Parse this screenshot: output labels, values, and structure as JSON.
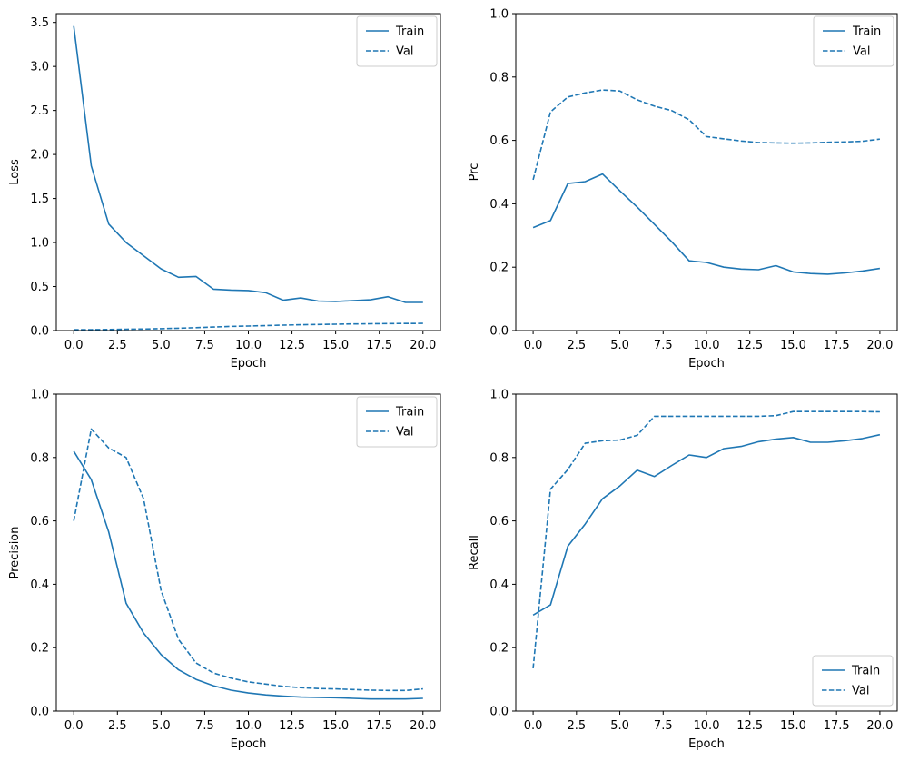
{
  "figure": {
    "background": "#ffffff",
    "line_color": "#1f77b4",
    "axis_color": "#000000",
    "legend_border_color": "#cccccc",
    "legend_labels": [
      "Train",
      "Val"
    ]
  },
  "chart_data": [
    {
      "type": "line",
      "panel": "top-left",
      "title": "",
      "xlabel": "Epoch",
      "ylabel": "Loss",
      "xlim": [
        -1,
        21
      ],
      "ylim": [
        0,
        3.6
      ],
      "xticks": [
        0,
        2.5,
        5,
        7.5,
        10,
        12.5,
        15,
        17.5,
        20
      ],
      "yticks": [
        0,
        0.5,
        1,
        1.5,
        2,
        2.5,
        3,
        3.5
      ],
      "grid": false,
      "legend_loc": "upper-right",
      "x": [
        0,
        1,
        2,
        3,
        4,
        5,
        6,
        7,
        8,
        9,
        10,
        11,
        12,
        13,
        14,
        15,
        16,
        17,
        18,
        19,
        20
      ],
      "series": [
        {
          "name": "Train",
          "style": "solid",
          "values": [
            3.46,
            1.87,
            1.21,
            1.0,
            0.85,
            0.7,
            0.605,
            0.615,
            0.47,
            0.46,
            0.455,
            0.43,
            0.345,
            0.37,
            0.335,
            0.33,
            0.34,
            0.35,
            0.385,
            0.32,
            0.32
          ]
        },
        {
          "name": "Val",
          "style": "dashed",
          "values": [
            0.01,
            0.01,
            0.012,
            0.015,
            0.018,
            0.022,
            0.027,
            0.033,
            0.04,
            0.047,
            0.052,
            0.057,
            0.062,
            0.066,
            0.069,
            0.072,
            0.075,
            0.077,
            0.079,
            0.08,
            0.082
          ]
        }
      ]
    },
    {
      "type": "line",
      "panel": "top-right",
      "title": "",
      "xlabel": "Epoch",
      "ylabel": "Prc",
      "xlim": [
        -1,
        21
      ],
      "ylim": [
        0,
        1
      ],
      "xticks": [
        0,
        2.5,
        5,
        7.5,
        10,
        12.5,
        15,
        17.5,
        20
      ],
      "yticks": [
        0,
        0.2,
        0.4,
        0.6,
        0.8,
        1.0
      ],
      "grid": false,
      "legend_loc": "upper-right",
      "x": [
        0,
        1,
        2,
        3,
        4,
        5,
        6,
        7,
        8,
        9,
        10,
        11,
        12,
        13,
        14,
        15,
        16,
        17,
        18,
        19,
        20
      ],
      "series": [
        {
          "name": "Train",
          "style": "solid",
          "values": [
            0.325,
            0.347,
            0.464,
            0.47,
            0.494,
            0.441,
            0.39,
            0.335,
            0.28,
            0.22,
            0.215,
            0.2,
            0.194,
            0.192,
            0.205,
            0.185,
            0.18,
            0.178,
            0.182,
            0.188,
            0.196
          ]
        },
        {
          "name": "Val",
          "style": "dashed",
          "values": [
            0.476,
            0.69,
            0.737,
            0.75,
            0.759,
            0.756,
            0.728,
            0.708,
            0.694,
            0.665,
            0.612,
            0.605,
            0.598,
            0.593,
            0.592,
            0.591,
            0.592,
            0.594,
            0.595,
            0.597,
            0.604
          ]
        }
      ]
    },
    {
      "type": "line",
      "panel": "bottom-left",
      "title": "",
      "xlabel": "Epoch",
      "ylabel": "Precision",
      "xlim": [
        -1,
        21
      ],
      "ylim": [
        0,
        1
      ],
      "xticks": [
        0,
        2.5,
        5,
        7.5,
        10,
        12.5,
        15,
        17.5,
        20
      ],
      "yticks": [
        0,
        0.2,
        0.4,
        0.6,
        0.8,
        1.0
      ],
      "grid": false,
      "legend_loc": "upper-right",
      "x": [
        0,
        1,
        2,
        3,
        4,
        5,
        6,
        7,
        8,
        9,
        10,
        11,
        12,
        13,
        14,
        15,
        16,
        17,
        18,
        19,
        20
      ],
      "series": [
        {
          "name": "Train",
          "style": "solid",
          "values": [
            0.82,
            0.73,
            0.565,
            0.34,
            0.246,
            0.178,
            0.13,
            0.1,
            0.08,
            0.066,
            0.057,
            0.051,
            0.047,
            0.044,
            0.043,
            0.042,
            0.04,
            0.038,
            0.038,
            0.038,
            0.04
          ]
        },
        {
          "name": "Val",
          "style": "dashed",
          "values": [
            0.6,
            0.89,
            0.83,
            0.8,
            0.67,
            0.38,
            0.226,
            0.152,
            0.12,
            0.104,
            0.092,
            0.085,
            0.078,
            0.074,
            0.071,
            0.07,
            0.068,
            0.066,
            0.065,
            0.065,
            0.07
          ]
        }
      ]
    },
    {
      "type": "line",
      "panel": "bottom-right",
      "title": "",
      "xlabel": "Epoch",
      "ylabel": "Recall",
      "xlim": [
        -1,
        21
      ],
      "ylim": [
        0,
        1
      ],
      "xticks": [
        0,
        2.5,
        5,
        7.5,
        10,
        12.5,
        15,
        17.5,
        20
      ],
      "yticks": [
        0,
        0.2,
        0.4,
        0.6,
        0.8,
        1.0
      ],
      "grid": false,
      "legend_loc": "lower-right",
      "x": [
        0,
        1,
        2,
        3,
        4,
        5,
        6,
        7,
        8,
        9,
        10,
        11,
        12,
        13,
        14,
        15,
        16,
        17,
        18,
        19,
        20
      ],
      "series": [
        {
          "name": "Train",
          "style": "solid",
          "values": [
            0.303,
            0.335,
            0.52,
            0.59,
            0.67,
            0.71,
            0.76,
            0.74,
            0.775,
            0.808,
            0.8,
            0.828,
            0.835,
            0.85,
            0.858,
            0.863,
            0.848,
            0.848,
            0.853,
            0.86,
            0.872
          ]
        },
        {
          "name": "Val",
          "style": "dashed",
          "values": [
            0.135,
            0.7,
            0.762,
            0.845,
            0.853,
            0.855,
            0.87,
            0.93,
            0.93,
            0.93,
            0.93,
            0.93,
            0.93,
            0.93,
            0.932,
            0.945,
            0.945,
            0.945,
            0.945,
            0.945,
            0.944
          ]
        }
      ]
    }
  ]
}
